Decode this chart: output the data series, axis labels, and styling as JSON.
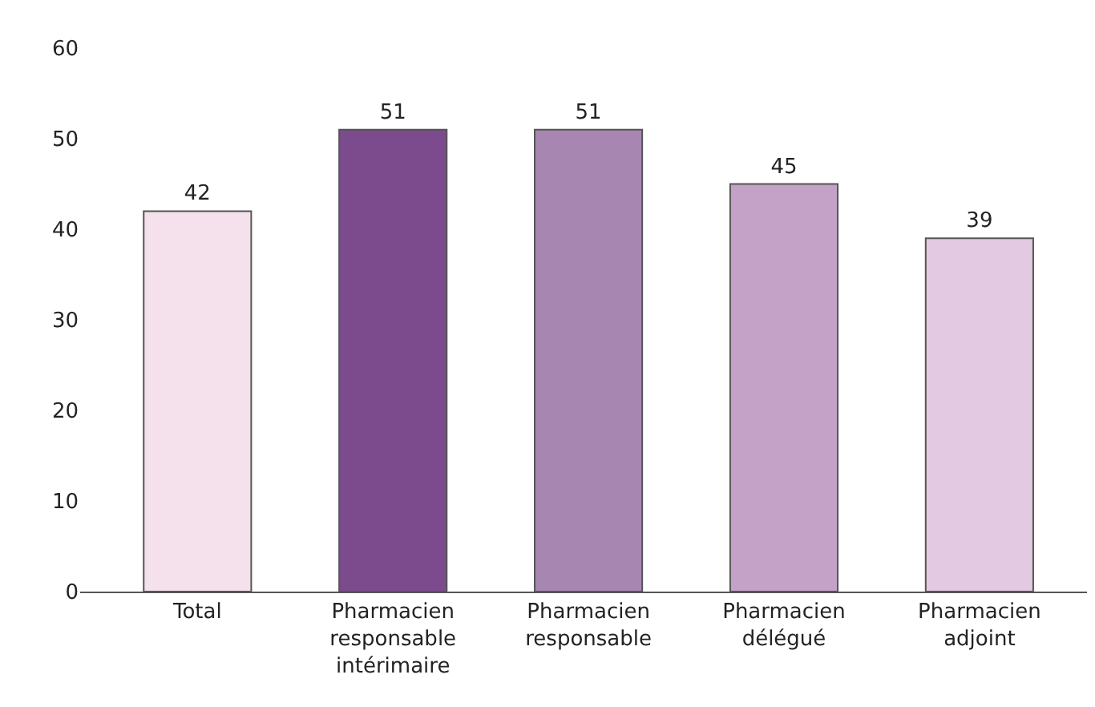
{
  "chart_data": {
    "type": "bar",
    "categories": [
      "Total",
      "Pharmacien responsable intérimaire",
      "Pharmacien responsable",
      "Pharmacien délégué",
      "Pharmacien adjoint"
    ],
    "values": [
      42,
      51,
      51,
      45,
      39
    ],
    "colors": [
      "#f4e1ec",
      "#7b4b8d",
      "#a886b2",
      "#c4a1c7",
      "#e3c9e1"
    ],
    "ylim": [
      0,
      60
    ],
    "yticks": [
      0,
      10,
      20,
      30,
      40,
      50,
      60
    ],
    "data_labels": true
  }
}
